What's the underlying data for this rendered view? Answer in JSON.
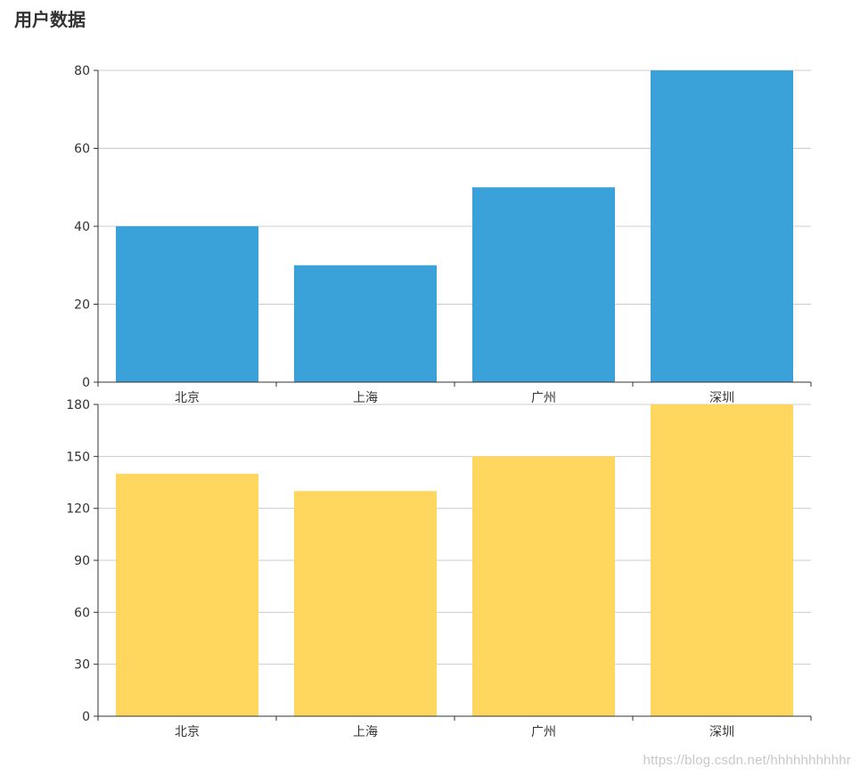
{
  "page": {
    "title": "用户数据",
    "watermark": "https://blog.csdn.net/hhhhhhhhhhr"
  },
  "colors": {
    "top_series": "#3aa2d9",
    "bottom_series": "#ffd75e",
    "grid": "#cccccc",
    "axis": "#333333"
  },
  "chart_data": [
    {
      "type": "bar",
      "title": "用户数据",
      "categories": [
        "北京",
        "上海",
        "广州",
        "深圳"
      ],
      "values": [
        40,
        30,
        50,
        80
      ],
      "ylim": [
        0,
        80
      ],
      "yticks": [
        0,
        20,
        40,
        60,
        80
      ],
      "grid": true,
      "color": "#3aa2d9"
    },
    {
      "type": "bar",
      "categories": [
        "北京",
        "上海",
        "广州",
        "深圳"
      ],
      "values": [
        140,
        130,
        150,
        180
      ],
      "ylim": [
        0,
        180
      ],
      "yticks": [
        0,
        30,
        60,
        90,
        120,
        150,
        180
      ],
      "grid": true,
      "color": "#ffd75e"
    }
  ]
}
